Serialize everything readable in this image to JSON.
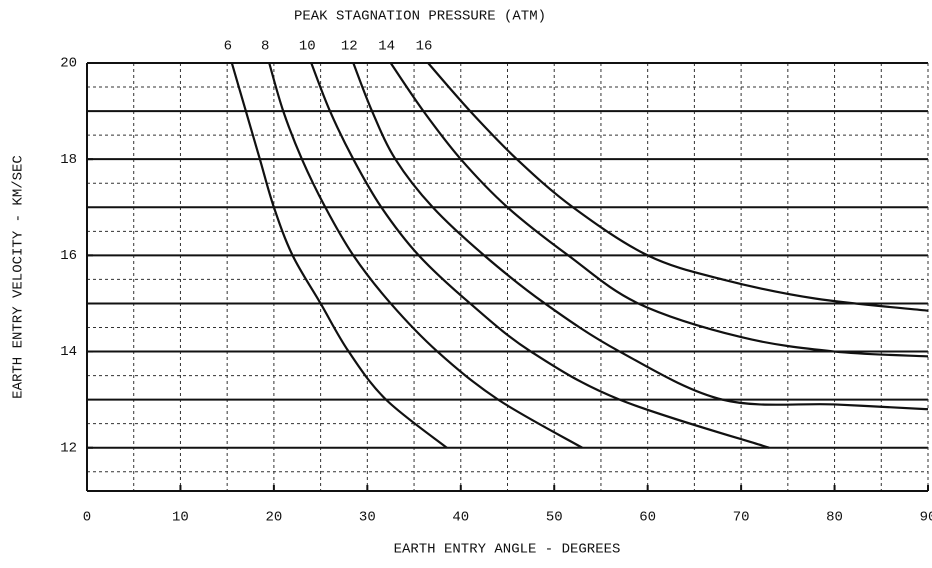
{
  "chart_data": {
    "type": "line",
    "title": "PEAK STAGNATION PRESSURE (ATM)",
    "xlabel": "EARTH ENTRY ANGLE - DEGREES",
    "ylabel": "EARTH ENTRY VELOCITY - KM/SEC",
    "xlim": [
      0,
      90
    ],
    "ylim": [
      11.1,
      20
    ],
    "xticks": [
      0,
      10,
      20,
      30,
      40,
      50,
      60,
      70,
      80,
      90
    ],
    "yticks": [
      12,
      14,
      16,
      18,
      20
    ],
    "xgrid": [
      5,
      10,
      15,
      20,
      25,
      30,
      35,
      40,
      45,
      50,
      55,
      60,
      65,
      70,
      75,
      80,
      85
    ],
    "ygrid": [
      11.5,
      12,
      12.5,
      13,
      13.5,
      14,
      14.5,
      15,
      15.5,
      16,
      16.5,
      17,
      17.5,
      18,
      18.5,
      19,
      19.5
    ],
    "grid": true,
    "color": "#111111",
    "series": [
      {
        "name": "6",
        "color": "#111111",
        "x": [
          15.5,
          17,
          18.5,
          20,
          22,
          25,
          28,
          32,
          38.5
        ],
        "values": [
          20,
          19,
          18,
          17,
          16,
          15,
          14,
          13,
          12
        ]
      },
      {
        "name": "8",
        "color": "#111111",
        "x": [
          19.5,
          21,
          23,
          25.5,
          28.5,
          32.5,
          37.5,
          44,
          53
        ],
        "values": [
          20,
          19,
          18,
          17,
          16,
          15,
          14,
          13,
          12
        ]
      },
      {
        "name": "10",
        "color": "#111111",
        "x": [
          24,
          26,
          28.5,
          31.5,
          35.5,
          41,
          47.5,
          57,
          73
        ],
        "values": [
          20,
          19,
          18,
          17,
          16,
          15,
          14,
          13,
          12
        ]
      },
      {
        "name": "12",
        "color": "#111111",
        "x": [
          28.5,
          30.5,
          33,
          37,
          42.5,
          49,
          57,
          68,
          80,
          90
        ],
        "values": [
          20,
          19,
          18,
          17,
          16,
          15,
          14,
          13,
          12.9,
          12.8
        ]
      },
      {
        "name": "14",
        "color": "#111111",
        "x": [
          32.5,
          36,
          40,
          45,
          51.5,
          59,
          70,
          80,
          90
        ],
        "values": [
          20,
          19,
          18,
          17,
          16,
          15,
          14.3,
          14,
          13.9
        ]
      },
      {
        "name": "16",
        "color": "#111111",
        "x": [
          36.5,
          41,
          46,
          52,
          60,
          68,
          78,
          90
        ],
        "values": [
          20,
          19,
          18,
          17,
          16,
          15.5,
          15.1,
          14.85
        ]
      }
    ]
  }
}
